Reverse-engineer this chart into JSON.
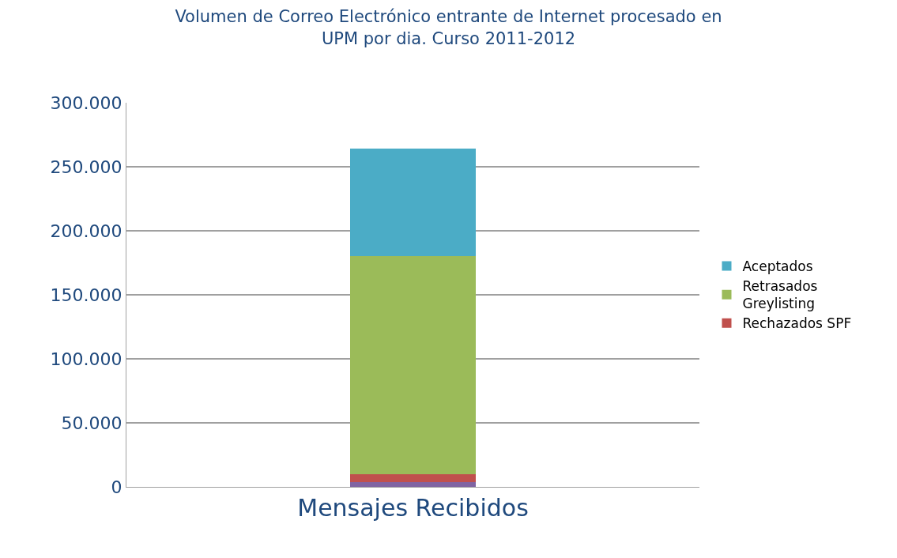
{
  "chart_data": {
    "type": "bar",
    "title": "Volumen de Correo Electrónico entrante de Internet procesado en UPM por dia. Curso 2011-2012",
    "categories": [
      "Mensajes Recibidos"
    ],
    "stacked": true,
    "series": [
      {
        "color": "#8064a2",
        "values": [
          4000
        ]
      },
      {
        "name": "Rechazados SPF",
        "color": "#c0504d",
        "values": [
          6000
        ]
      },
      {
        "name": "Retrasados Greylisting",
        "color": "#9bbb59",
        "values": [
          170000
        ]
      },
      {
        "name": "Aceptados",
        "color": "#4bacc6",
        "values": [
          84000
        ]
      }
    ],
    "ylim": [
      0,
      300000
    ],
    "yticks": [
      0,
      {
        "value": 50000,
        "label": "50.000"
      },
      {
        "value": 100000,
        "label": "100.000"
      },
      {
        "value": 150000,
        "label": "150.000"
      },
      {
        "value": 200000,
        "label": "200.000"
      },
      {
        "value": 250000,
        "label": "250.000"
      },
      {
        "value": 300000,
        "label": "300.000"
      }
    ],
    "grid": "y",
    "legend": "right"
  }
}
